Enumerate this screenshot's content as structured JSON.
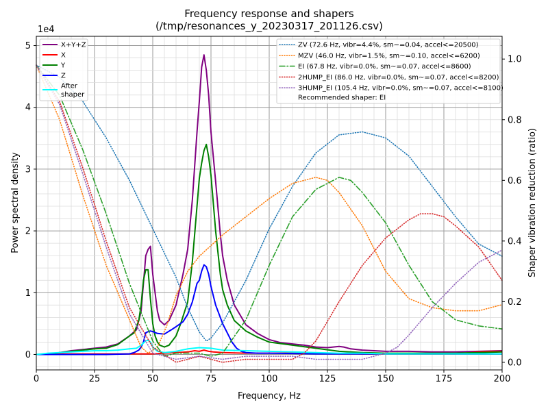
{
  "chart_data": {
    "type": "line",
    "title_line1": "Frequency response and shapers",
    "title_line2": "(/tmp/resonances_y_20230317_201126.csv)",
    "xlabel": "Frequency, Hz",
    "ylabel": "Power spectral density",
    "y2label": "Shaper vibration reduction (ratio)",
    "y_scale_label": "1e4",
    "xlim": [
      0,
      200
    ],
    "ylim": [
      -0.25,
      5.15
    ],
    "y2lim": [
      -0.025,
      1.075
    ],
    "x_ticks": [
      0,
      25,
      50,
      75,
      100,
      125,
      150,
      175,
      200
    ],
    "x_tick_labels": [
      "0",
      "25",
      "50",
      "75",
      "100",
      "125",
      "150",
      "175",
      "200"
    ],
    "y_ticks": [
      0,
      1,
      2,
      3,
      4,
      5
    ],
    "y_tick_labels": [
      "0",
      "1",
      "2",
      "3",
      "4",
      "5"
    ],
    "y2_ticks": [
      0,
      0.2,
      0.4,
      0.6,
      0.8,
      1.0
    ],
    "y2_tick_labels": [
      "0.0",
      "0.2",
      "0.4",
      "0.6",
      "0.8",
      "1.0"
    ],
    "grid": true,
    "psd_series": [
      {
        "name": "X+Y+Z",
        "color": "#800080",
        "x": [
          0,
          5,
          10,
          15,
          20,
          25,
          30,
          35,
          40,
          43,
          45,
          47,
          48,
          49,
          50,
          51,
          52,
          53,
          55,
          57,
          60,
          63,
          65,
          67,
          69,
          70,
          71,
          72,
          73,
          74,
          75,
          77,
          79,
          80,
          82,
          85,
          90,
          95,
          100,
          105,
          110,
          115,
          120,
          125,
          130,
          132,
          135,
          140,
          150,
          160,
          170,
          180,
          190,
          200
        ],
        "y": [
          0,
          0,
          0.03,
          0.06,
          0.08,
          0.1,
          0.12,
          0.17,
          0.3,
          0.4,
          0.7,
          1.6,
          1.7,
          1.75,
          1.3,
          1.0,
          0.7,
          0.55,
          0.48,
          0.55,
          0.8,
          1.3,
          1.7,
          2.5,
          3.6,
          4.1,
          4.65,
          4.85,
          4.6,
          4.2,
          3.6,
          2.8,
          1.95,
          1.6,
          1.2,
          0.8,
          0.48,
          0.34,
          0.24,
          0.19,
          0.17,
          0.15,
          0.12,
          0.11,
          0.13,
          0.12,
          0.09,
          0.07,
          0.05,
          0.05,
          0.04,
          0.04,
          0.05,
          0.06
        ]
      },
      {
        "name": "X",
        "color": "#ff0000",
        "x": [
          0,
          10,
          20,
          30,
          40,
          45,
          50,
          55,
          60,
          65,
          68,
          70,
          72,
          74,
          76,
          80,
          90,
          100,
          120,
          140,
          160,
          180,
          190,
          195,
          200
        ],
        "y": [
          0,
          0.01,
          0.01,
          0.01,
          0.01,
          0.01,
          0.01,
          0.02,
          0.03,
          0.04,
          0.06,
          0.05,
          0.07,
          0.05,
          0.04,
          0.03,
          0.02,
          0.02,
          0.02,
          0.01,
          0.01,
          0.01,
          0.04,
          0.05,
          0.05
        ]
      },
      {
        "name": "Y",
        "color": "#008000",
        "x": [
          0,
          5,
          10,
          15,
          20,
          25,
          30,
          35,
          40,
          42,
          44,
          45,
          46,
          47,
          48,
          49,
          50,
          51,
          52,
          53,
          55,
          57,
          60,
          62,
          65,
          67,
          69,
          70,
          71,
          72,
          73,
          74,
          75,
          77,
          79,
          80,
          82,
          85,
          90,
          95,
          100,
          110,
          120,
          130,
          135,
          140,
          150,
          160,
          170,
          180,
          190,
          200
        ],
        "y": [
          0,
          0,
          0.03,
          0.05,
          0.07,
          0.09,
          0.1,
          0.16,
          0.3,
          0.35,
          0.55,
          0.8,
          1.2,
          1.37,
          1.37,
          0.9,
          0.5,
          0.3,
          0.2,
          0.15,
          0.12,
          0.15,
          0.3,
          0.5,
          0.85,
          1.5,
          2.4,
          2.85,
          3.1,
          3.3,
          3.4,
          3.2,
          2.9,
          2.0,
          1.3,
          1.05,
          0.8,
          0.55,
          0.38,
          0.28,
          0.2,
          0.15,
          0.1,
          0.05,
          0.04,
          0.03,
          0.02,
          0.02,
          0.02,
          0.02,
          0.03,
          0.04
        ]
      },
      {
        "name": "Z",
        "color": "#0000ff",
        "x": [
          0,
          10,
          20,
          30,
          40,
          42,
          44,
          45,
          46,
          47,
          48,
          49,
          50,
          52,
          55,
          58,
          60,
          63,
          65,
          67,
          69,
          70,
          71,
          72,
          73,
          74,
          75,
          76,
          77,
          78,
          80,
          82,
          84,
          86,
          88,
          90,
          95,
          100,
          120,
          140,
          160,
          180,
          200
        ],
        "y": [
          0,
          0,
          0,
          0,
          0.01,
          0.03,
          0.07,
          0.12,
          0.2,
          0.35,
          0.37,
          0.38,
          0.37,
          0.34,
          0.33,
          0.4,
          0.45,
          0.53,
          0.65,
          0.85,
          1.15,
          1.2,
          1.35,
          1.45,
          1.42,
          1.3,
          1.1,
          0.95,
          0.8,
          0.7,
          0.5,
          0.35,
          0.2,
          0.1,
          0.05,
          0.03,
          0.02,
          0.02,
          0.01,
          0.01,
          0.01,
          0.01,
          0.01
        ]
      },
      {
        "name": "After\nshaper",
        "color": "#00ffff",
        "x": [
          0,
          5,
          10,
          15,
          20,
          25,
          30,
          35,
          40,
          43,
          45,
          47,
          48,
          49,
          50,
          52,
          55,
          60,
          65,
          70,
          75,
          80,
          90,
          100,
          110,
          120,
          130,
          140,
          150,
          160,
          170,
          180,
          190,
          200
        ],
        "y": [
          0,
          0.02,
          0.03,
          0.04,
          0.05,
          0.06,
          0.06,
          0.07,
          0.09,
          0.1,
          0.15,
          0.22,
          0.23,
          0.2,
          0.12,
          0.05,
          0.03,
          0.05,
          0.09,
          0.11,
          0.1,
          0.07,
          0.06,
          0.05,
          0.04,
          0.03,
          0.02,
          0.02,
          0.01,
          0.01,
          0.01,
          0.01,
          0.01,
          0.01
        ]
      }
    ],
    "shaper_series": [
      {
        "name": "ZV (72.6 Hz, vibr=4.4%, sm~=0.04, accel<=20500)",
        "color": "#1f77b4",
        "dash": "1,2.5",
        "x": [
          0,
          10,
          20,
          30,
          40,
          50,
          60,
          65,
          70,
          73,
          75,
          80,
          90,
          100,
          110,
          120,
          130,
          140,
          150,
          160,
          170,
          180,
          190,
          200
        ],
        "y": [
          0.98,
          0.94,
          0.86,
          0.74,
          0.6,
          0.44,
          0.28,
          0.18,
          0.1,
          0.07,
          0.08,
          0.13,
          0.27,
          0.44,
          0.58,
          0.69,
          0.75,
          0.76,
          0.74,
          0.68,
          0.58,
          0.48,
          0.39,
          0.35
        ]
      },
      {
        "name": "MZV (46.0 Hz, vibr=1.5%, sm~=0.10, accel<=6200)",
        "color": "#ff7f0e",
        "dash": "1,2.5",
        "x": [
          0,
          10,
          20,
          30,
          40,
          45,
          48,
          52,
          56,
          60,
          65,
          70,
          80,
          90,
          100,
          110,
          120,
          125,
          130,
          140,
          150,
          160,
          170,
          180,
          190,
          200
        ],
        "y": [
          0.98,
          0.8,
          0.55,
          0.32,
          0.14,
          0.05,
          0.03,
          0.05,
          0.12,
          0.22,
          0.3,
          0.35,
          0.42,
          0.48,
          0.54,
          0.59,
          0.61,
          0.6,
          0.56,
          0.45,
          0.3,
          0.21,
          0.18,
          0.17,
          0.17,
          0.19
        ]
      },
      {
        "name": "EI (67.8 Hz, vibr=0.0%, sm~=0.07, accel<=8600)",
        "color": "#2ca02c",
        "dash": "8,3,1.5,3",
        "x": [
          0,
          10,
          20,
          30,
          40,
          50,
          55,
          60,
          65,
          70,
          75,
          80,
          90,
          100,
          110,
          120,
          130,
          135,
          140,
          150,
          160,
          170,
          180,
          190,
          200
        ],
        "y": [
          0.98,
          0.88,
          0.7,
          0.49,
          0.26,
          0.07,
          0.02,
          0.03,
          0.03,
          0.03,
          0.02,
          0.03,
          0.14,
          0.32,
          0.48,
          0.57,
          0.61,
          0.6,
          0.56,
          0.46,
          0.32,
          0.2,
          0.14,
          0.12,
          0.11
        ]
      },
      {
        "name": "2HUMP_EI (86.0 Hz, vibr=0.0%, sm~=0.07, accel<=8200)",
        "color": "#d62728",
        "dash": "1,2.5",
        "x": [
          0,
          10,
          20,
          30,
          40,
          50,
          60,
          70,
          80,
          90,
          100,
          110,
          115,
          120,
          130,
          140,
          150,
          160,
          165,
          170,
          175,
          180,
          190,
          200
        ],
        "y": [
          0.98,
          0.86,
          0.64,
          0.4,
          0.18,
          0.05,
          0.0,
          0.02,
          0.0,
          0.01,
          0.01,
          0.01,
          0.03,
          0.07,
          0.2,
          0.32,
          0.41,
          0.47,
          0.49,
          0.49,
          0.48,
          0.45,
          0.38,
          0.27
        ]
      },
      {
        "name": "3HUMP_EI (105.4 Hz, vibr=0.0%, sm~=0.07, accel<=8100)",
        "color": "#9467bd",
        "dash": "1,2.5",
        "x": [
          0,
          10,
          20,
          30,
          40,
          50,
          60,
          70,
          80,
          90,
          100,
          110,
          120,
          130,
          140,
          150,
          155,
          160,
          170,
          180,
          190,
          200
        ],
        "y": [
          0.98,
          0.85,
          0.62,
          0.38,
          0.16,
          0.03,
          0.01,
          0.02,
          0.01,
          0.02,
          0.02,
          0.02,
          0.01,
          0.01,
          0.01,
          0.03,
          0.05,
          0.09,
          0.18,
          0.26,
          0.33,
          0.37
        ]
      }
    ],
    "legend_left": {
      "position": "top-left",
      "entries": [
        {
          "label": "X+Y+Z",
          "color": "#800080"
        },
        {
          "label": "X",
          "color": "#ff0000"
        },
        {
          "label": "Y",
          "color": "#008000"
        },
        {
          "label": "Z",
          "color": "#0000ff"
        },
        {
          "label_line1": "After",
          "label_line2": "shaper",
          "color": "#00ffff"
        }
      ]
    },
    "legend_right": {
      "position": "top-right",
      "recommended": "Recommended shaper: EI"
    }
  }
}
